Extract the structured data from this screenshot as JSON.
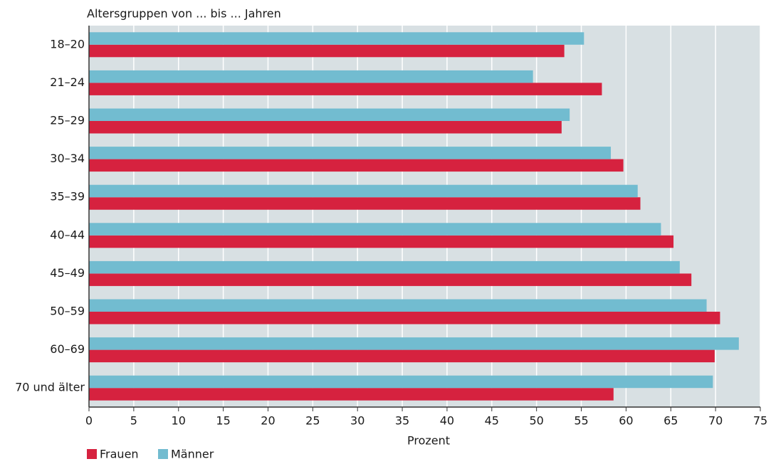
{
  "chart_data": {
    "type": "hbar",
    "title": "Altersgruppen von ... bis ... Jahren",
    "x_label": "Prozent",
    "categories": [
      "18–20",
      "21–24",
      "25–29",
      "30–34",
      "35–39",
      "40–44",
      "45–49",
      "50–59",
      "60–69",
      "70 und älter"
    ],
    "series": [
      {
        "name": "Frauen",
        "color": "#d6223f",
        "values": [
          53.1,
          57.3,
          52.8,
          59.7,
          61.6,
          65.3,
          67.3,
          70.5,
          69.9,
          58.6
        ]
      },
      {
        "name": "Männer",
        "color": "#72bcd0",
        "values": [
          55.3,
          49.6,
          53.7,
          58.3,
          61.3,
          63.9,
          66.0,
          69.0,
          72.6,
          69.7
        ]
      }
    ],
    "xlim": [
      0,
      75
    ],
    "xticks": [
      0,
      5,
      10,
      15,
      20,
      25,
      30,
      35,
      40,
      45,
      50,
      55,
      60,
      65,
      70,
      75
    ],
    "grid": true,
    "plot_background": "#d8e0e3"
  }
}
